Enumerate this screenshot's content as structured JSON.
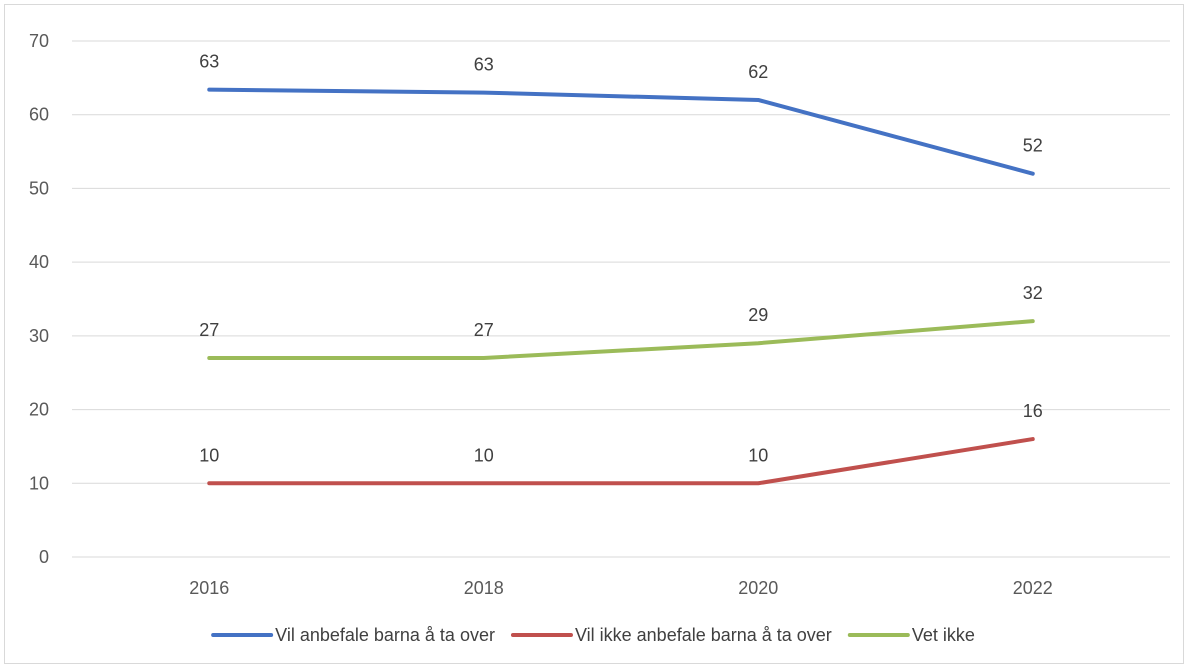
{
  "chart_data": {
    "type": "line",
    "categories": [
      "2016",
      "2018",
      "2020",
      "2022"
    ],
    "series": [
      {
        "name": "Vil anbefale barna å ta over",
        "color": "#4472C4",
        "values": [
          63.4,
          63,
          62,
          52
        ],
        "labels": [
          "63",
          "63",
          "62",
          "52"
        ]
      },
      {
        "name": "Vil ikke anbefale barna å ta over",
        "color": "#C0504D",
        "values": [
          10,
          10,
          10,
          16
        ],
        "labels": [
          "10",
          "10",
          "10",
          "16"
        ]
      },
      {
        "name": "Vet ikke",
        "color": "#9BBB59",
        "values": [
          27,
          27,
          29,
          32
        ],
        "labels": [
          "27",
          "27",
          "29",
          "32"
        ]
      }
    ],
    "yticks": [
      "0",
      "10",
      "20",
      "30",
      "40",
      "50",
      "60",
      "70"
    ],
    "ylim": [
      0,
      70
    ],
    "grid": true,
    "legend_position": "bottom",
    "title": "",
    "xlabel": "",
    "ylabel": ""
  }
}
